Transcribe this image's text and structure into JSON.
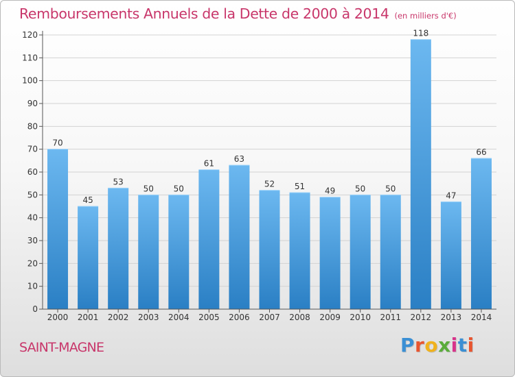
{
  "title": "Remboursements Annuels de la Dette de 2000 à 2014",
  "unit": "(en milliers d'€)",
  "commune": "SAINT-MAGNE",
  "logo": {
    "letters": [
      "P",
      "r",
      "o",
      "x",
      "i",
      "t",
      "i"
    ],
    "colors": [
      "#3a8fd4",
      "#e8552f",
      "#f0b21d",
      "#5aac3b",
      "#d8338a",
      "#3a8fd4",
      "#e8552f"
    ]
  },
  "colors": {
    "bar_light": "#6cb8f0",
    "bar_dark": "#2a7fc4",
    "title": "#c8366a"
  },
  "chart_data": {
    "type": "bar",
    "title": "Remboursements Annuels de la Dette de 2000 à 2014",
    "categories": [
      "2000",
      "2001",
      "2002",
      "2003",
      "2004",
      "2005",
      "2006",
      "2007",
      "2008",
      "2009",
      "2010",
      "2011",
      "2012",
      "2013",
      "2014"
    ],
    "values": [
      70,
      45,
      53,
      50,
      50,
      61,
      63,
      52,
      51,
      49,
      50,
      50,
      118,
      47,
      66
    ],
    "ylim": [
      0,
      120
    ],
    "yticks": [
      0,
      10,
      20,
      30,
      40,
      50,
      60,
      70,
      80,
      90,
      100,
      110,
      120
    ],
    "grid": true,
    "xlabel": "",
    "ylabel": ""
  }
}
